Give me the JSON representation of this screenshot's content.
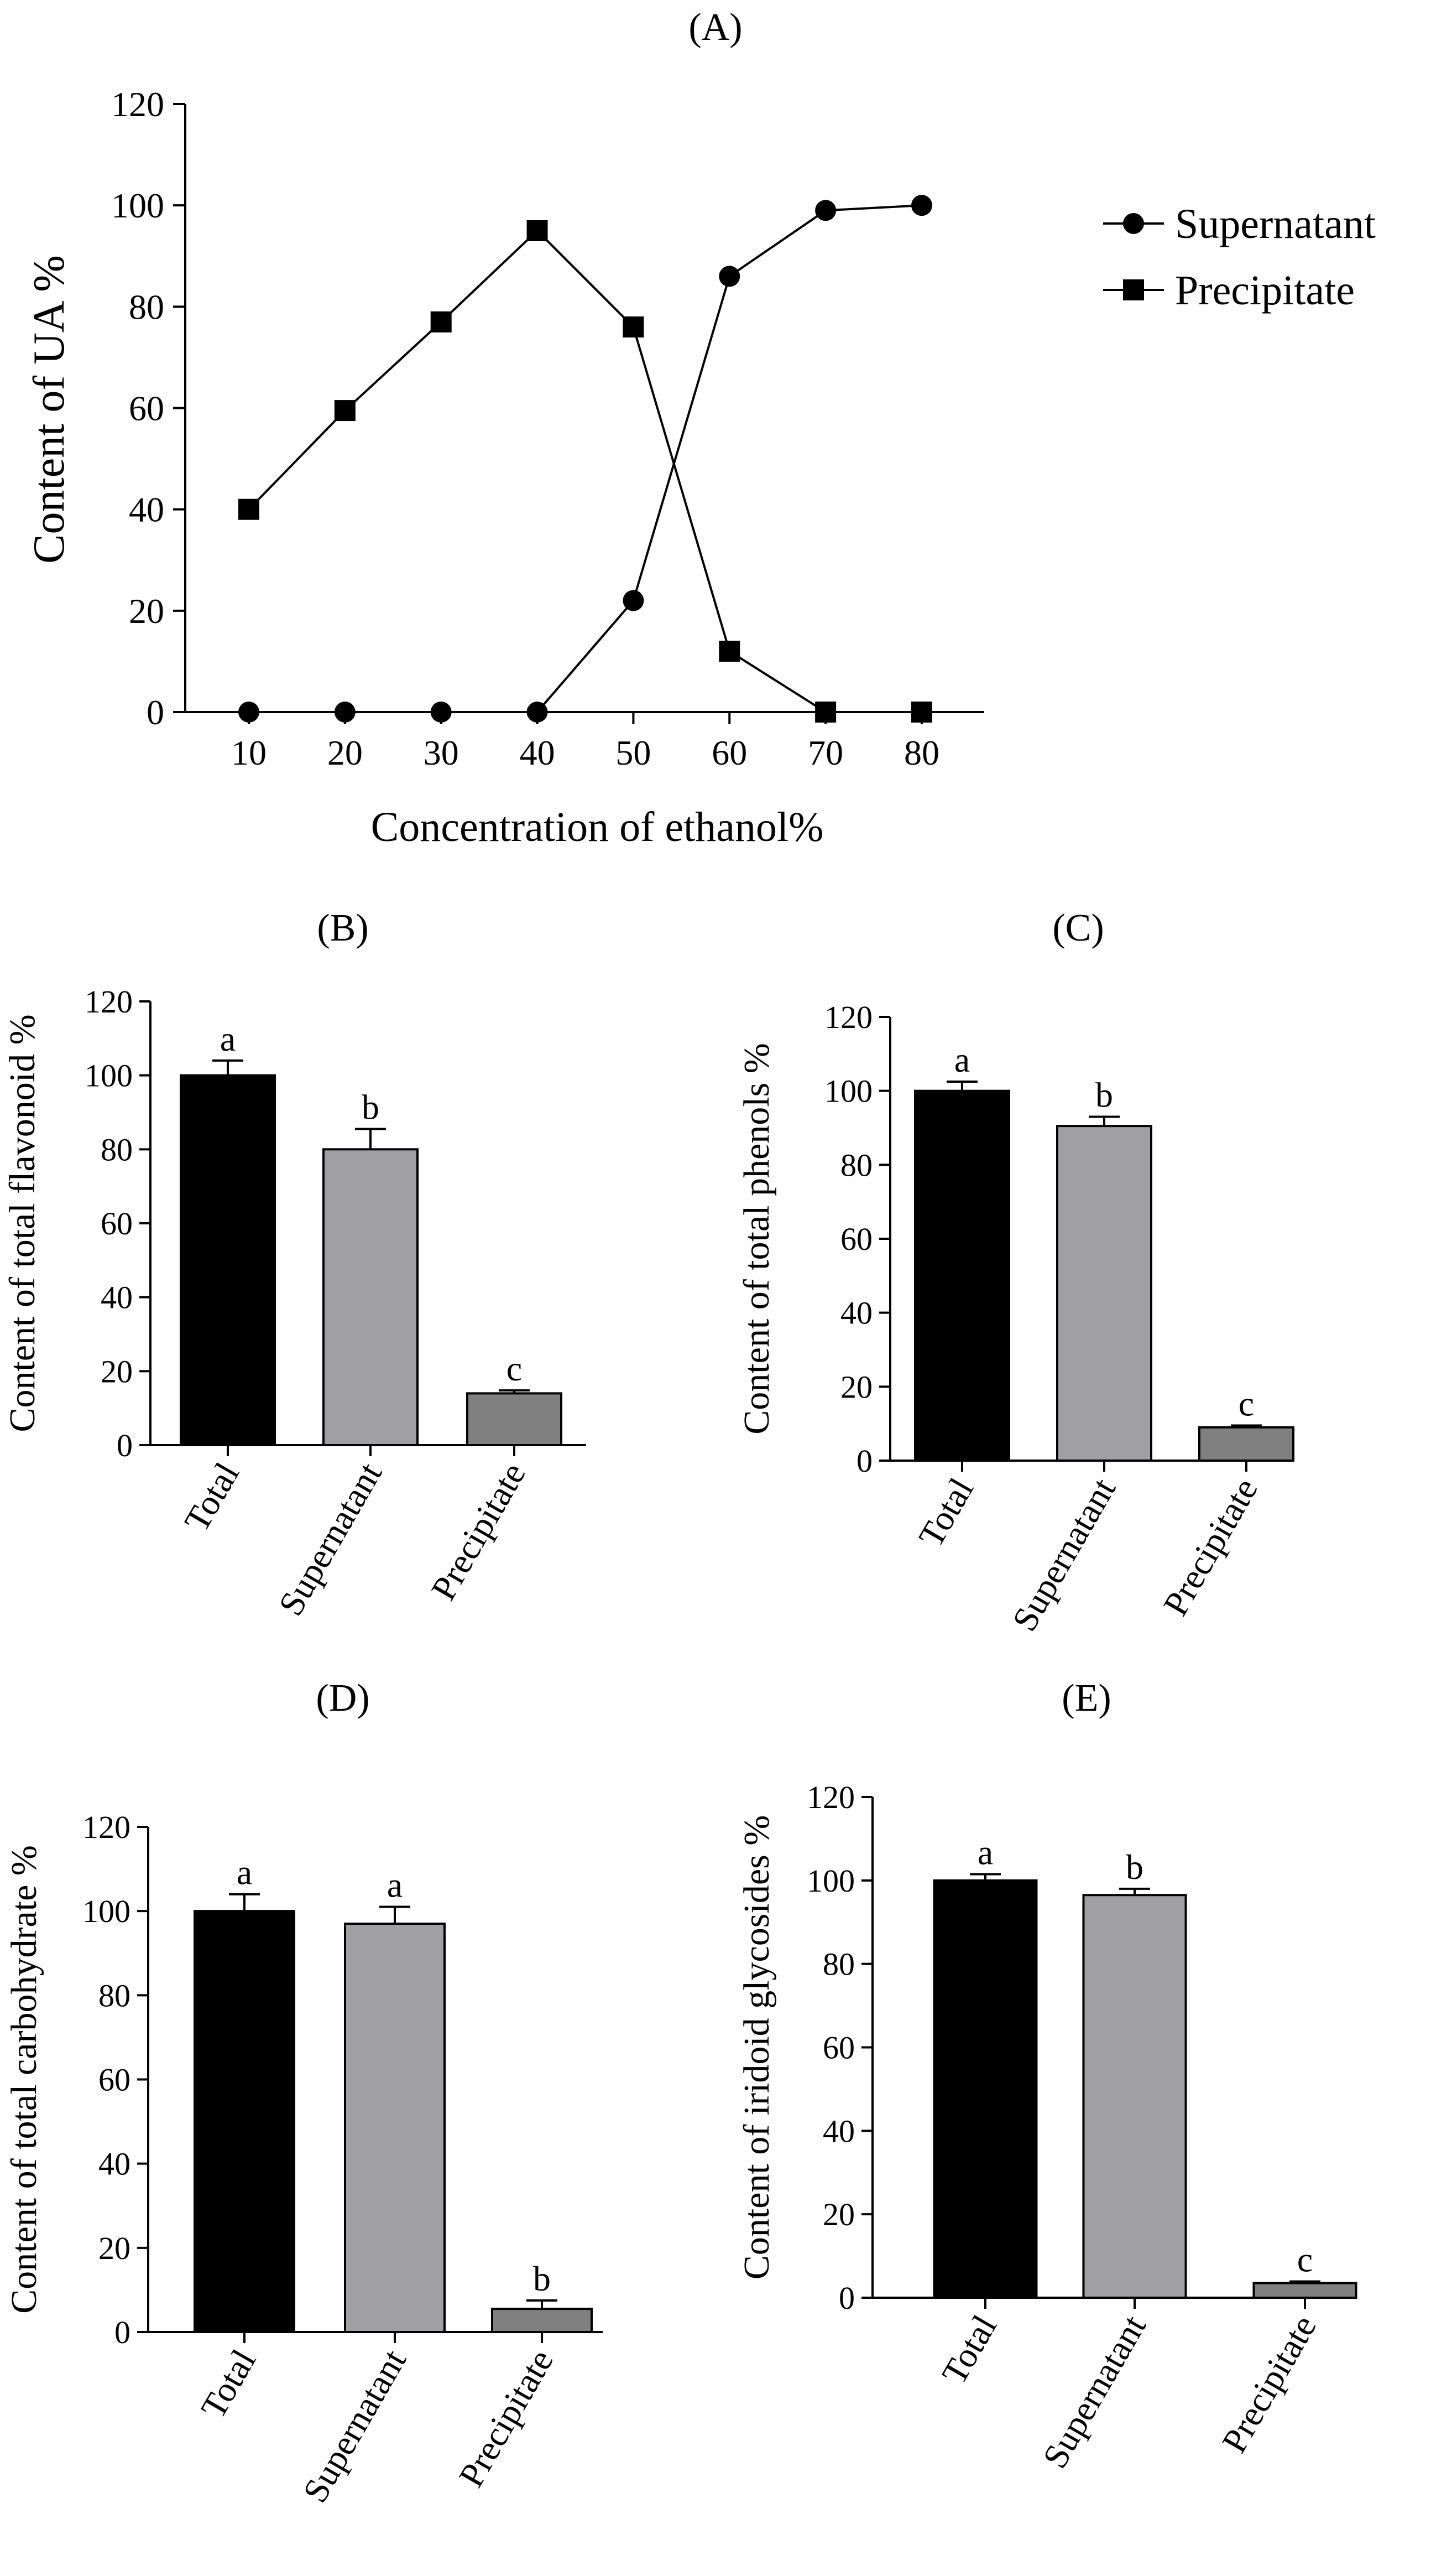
{
  "chart_data": [
    {
      "panel": "(A)",
      "type": "line",
      "xlabel": "Concentration of ethanol%",
      "ylabel": "Content of UA %",
      "x": [
        10,
        20,
        30,
        40,
        50,
        60,
        70,
        80
      ],
      "ylim": [
        0,
        120
      ],
      "yticks": [
        0,
        20,
        40,
        60,
        80,
        100,
        120
      ],
      "series": [
        {
          "name": "Supernatant",
          "marker": "circle",
          "values": [
            0,
            0,
            0,
            0,
            22,
            86,
            99,
            100
          ]
        },
        {
          "name": "Precipitate",
          "marker": "square",
          "values": [
            40,
            59.5,
            77,
            95,
            76,
            12,
            0,
            0
          ]
        }
      ],
      "legend": "right"
    },
    {
      "panel": "(B)",
      "type": "bar",
      "ylabel": "Content of total flavonoid %",
      "categories": [
        "Total",
        "Supernatant",
        "Precipitate"
      ],
      "values": [
        100,
        80,
        14
      ],
      "errors": [
        4,
        5.5,
        0.8
      ],
      "letters": [
        "a",
        "b",
        "c"
      ],
      "colors": [
        "#000000",
        "#a0a0a4",
        "#808080"
      ],
      "ylim": [
        0,
        120
      ],
      "yticks": [
        0,
        20,
        40,
        60,
        80,
        100,
        120
      ]
    },
    {
      "panel": "(C)",
      "type": "bar",
      "ylabel": "Content of total phenols %",
      "categories": [
        "Total",
        "Supernatant",
        "Precipitate"
      ],
      "values": [
        100,
        90.5,
        9
      ],
      "errors": [
        2.5,
        2.5,
        0.5
      ],
      "letters": [
        "a",
        "b",
        "c"
      ],
      "colors": [
        "#000000",
        "#a0a0a4",
        "#808080"
      ],
      "ylim": [
        0,
        120
      ],
      "yticks": [
        0,
        20,
        40,
        60,
        80,
        100,
        120
      ]
    },
    {
      "panel": "(D)",
      "type": "bar",
      "ylabel": "Content of total carbohydrate %",
      "categories": [
        "Total",
        "Supernatant",
        "Precipitate"
      ],
      "values": [
        100,
        97,
        5.5
      ],
      "errors": [
        4,
        4,
        2
      ],
      "letters": [
        "a",
        "a",
        "b"
      ],
      "colors": [
        "#000000",
        "#a0a0a4",
        "#808080"
      ],
      "ylim": [
        0,
        120
      ],
      "yticks": [
        0,
        20,
        40,
        60,
        80,
        100,
        120
      ]
    },
    {
      "panel": "(E)",
      "type": "bar",
      "ylabel": "Content of iridoid glycosides %",
      "categories": [
        "Total",
        "Supernatant",
        "Precipitate"
      ],
      "values": [
        100,
        96.5,
        3.5
      ],
      "errors": [
        1.5,
        1.5,
        0.4
      ],
      "letters": [
        "a",
        "b",
        "c"
      ],
      "colors": [
        "#000000",
        "#a0a0a4",
        "#808080"
      ],
      "ylim": [
        0,
        120
      ],
      "yticks": [
        0,
        20,
        40,
        60,
        80,
        100,
        120
      ]
    }
  ]
}
